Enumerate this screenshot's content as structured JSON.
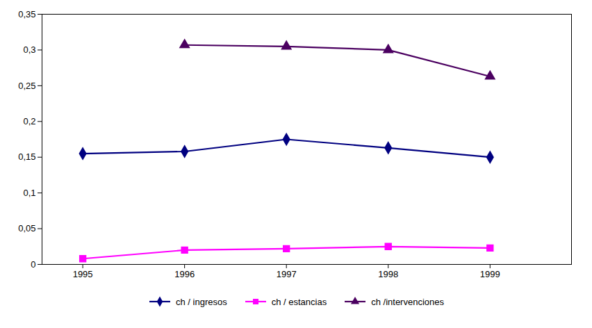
{
  "chart_data": {
    "type": "line",
    "x": [
      1995,
      1996,
      1997,
      1998,
      1999
    ],
    "series": [
      {
        "name": "ch / ingresos",
        "color": "#000080",
        "marker": "diamond",
        "values": [
          0.155,
          0.158,
          0.175,
          0.163,
          0.15
        ]
      },
      {
        "name": "ch / estancias",
        "color": "#FF00FF",
        "marker": "square",
        "values": [
          0.008,
          0.02,
          0.022,
          0.025,
          0.023
        ]
      },
      {
        "name": "ch /intervenciones",
        "color": "#4B0060",
        "marker": "triangle",
        "values": [
          null,
          0.307,
          0.305,
          0.3,
          0.263
        ]
      }
    ],
    "xlim": [
      1994.6,
      1999.8
    ],
    "xticks": [
      1995,
      1996,
      1997,
      1998,
      1999
    ],
    "ylim": [
      0,
      0.35
    ],
    "yticks": [
      0,
      {
        "value": 0.05,
        "label": "0,05"
      },
      {
        "value": 0.1,
        "label": "0,1"
      },
      {
        "value": 0.15,
        "label": "0,15"
      },
      {
        "value": 0.2,
        "label": "0,2"
      },
      {
        "value": 0.25,
        "label": "0,25"
      },
      {
        "value": 0.3,
        "label": "0,3"
      },
      {
        "value": 0.35,
        "label": "0,35"
      }
    ],
    "grid": false,
    "legend": "bottom"
  }
}
